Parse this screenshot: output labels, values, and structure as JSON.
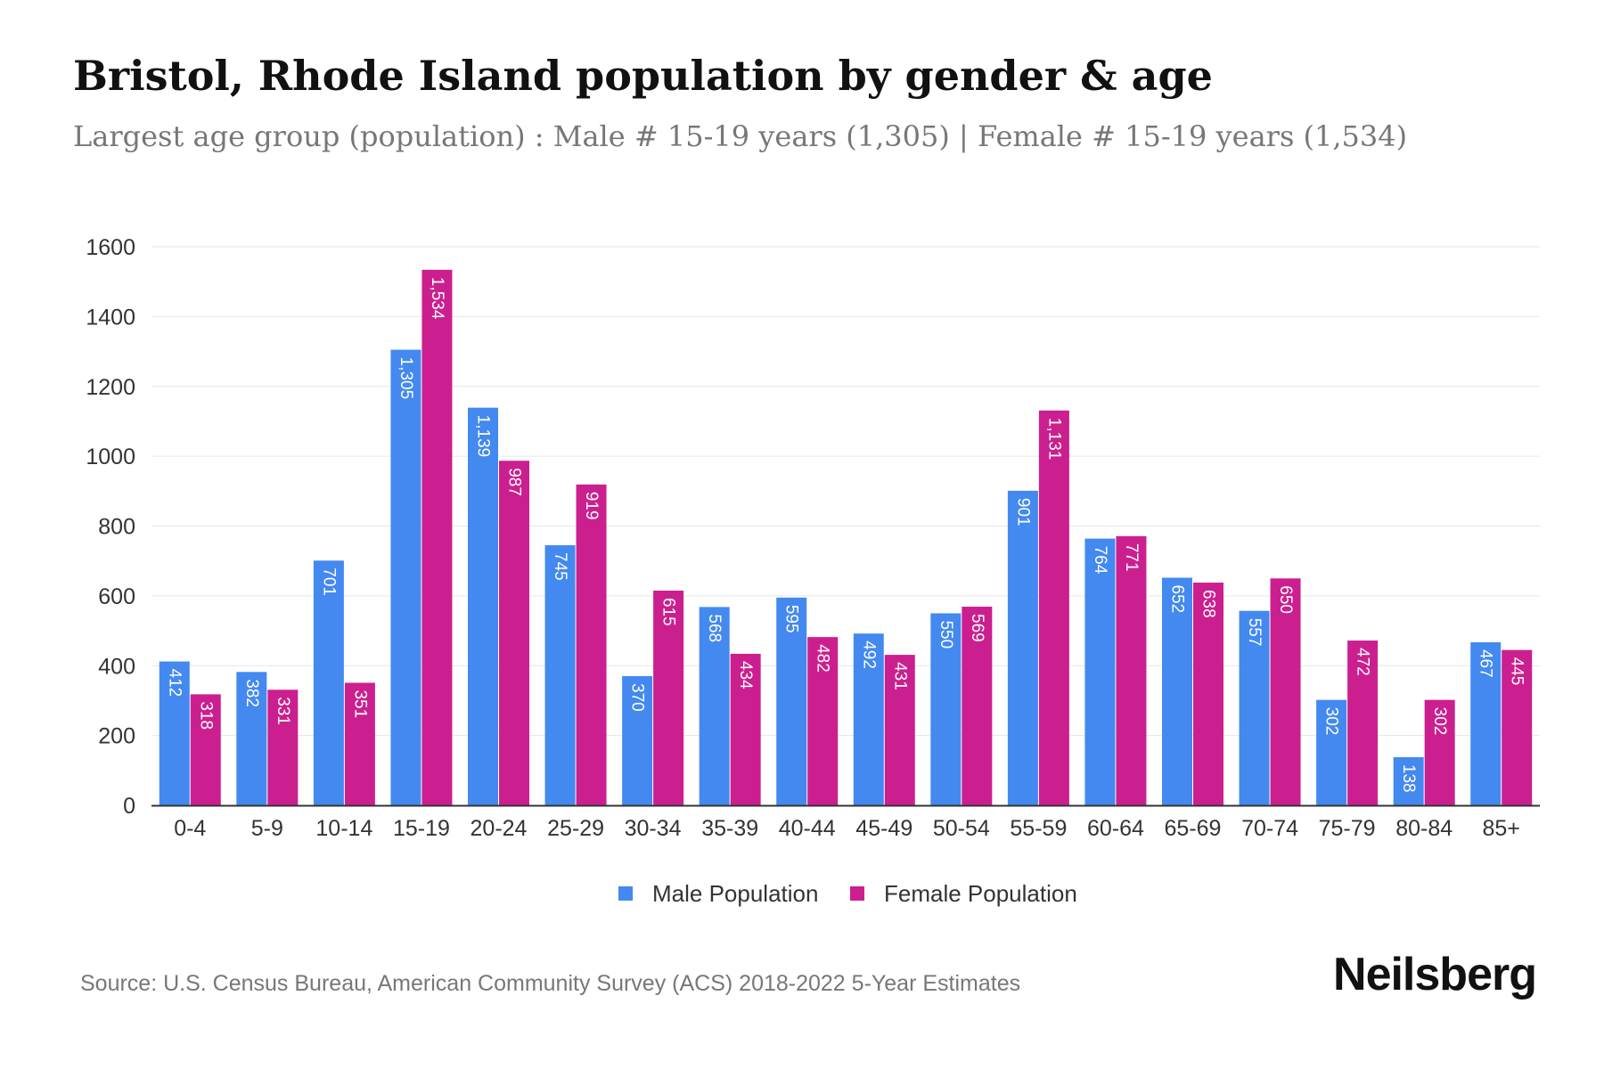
{
  "chart_data": {
    "type": "bar",
    "title": "Bristol, Rhode Island population by gender & age",
    "subtitle": "Largest age group (population) : Male # 15-19 years (1,305) | Female # 15-19 years (1,534)",
    "categories": [
      "0-4",
      "5-9",
      "10-14",
      "15-19",
      "20-24",
      "25-29",
      "30-34",
      "35-39",
      "40-44",
      "45-49",
      "50-54",
      "55-59",
      "60-64",
      "65-69",
      "70-74",
      "75-79",
      "80-84",
      "85+"
    ],
    "series": [
      {
        "name": "Male Population",
        "color": "#4389f0",
        "values": [
          412,
          382,
          701,
          1305,
          1139,
          745,
          370,
          568,
          595,
          492,
          550,
          901,
          764,
          652,
          557,
          302,
          138,
          467
        ]
      },
      {
        "name": "Female Population",
        "color": "#cc1f8f",
        "values": [
          318,
          331,
          351,
          1534,
          987,
          919,
          615,
          434,
          482,
          431,
          569,
          1131,
          771,
          638,
          650,
          472,
          302,
          445
        ]
      }
    ],
    "xlabel": "",
    "ylabel": "",
    "ylim": [
      0,
      1600
    ],
    "yticks": [
      0,
      200,
      400,
      600,
      800,
      1000,
      1200,
      1400,
      1600
    ],
    "grid": true,
    "legend": "bottom-center"
  },
  "footer": {
    "source": "Source: U.S. Census Bureau, American Community Survey (ACS) 2018-2022 5-Year Estimates",
    "brand": "Neilsberg"
  }
}
